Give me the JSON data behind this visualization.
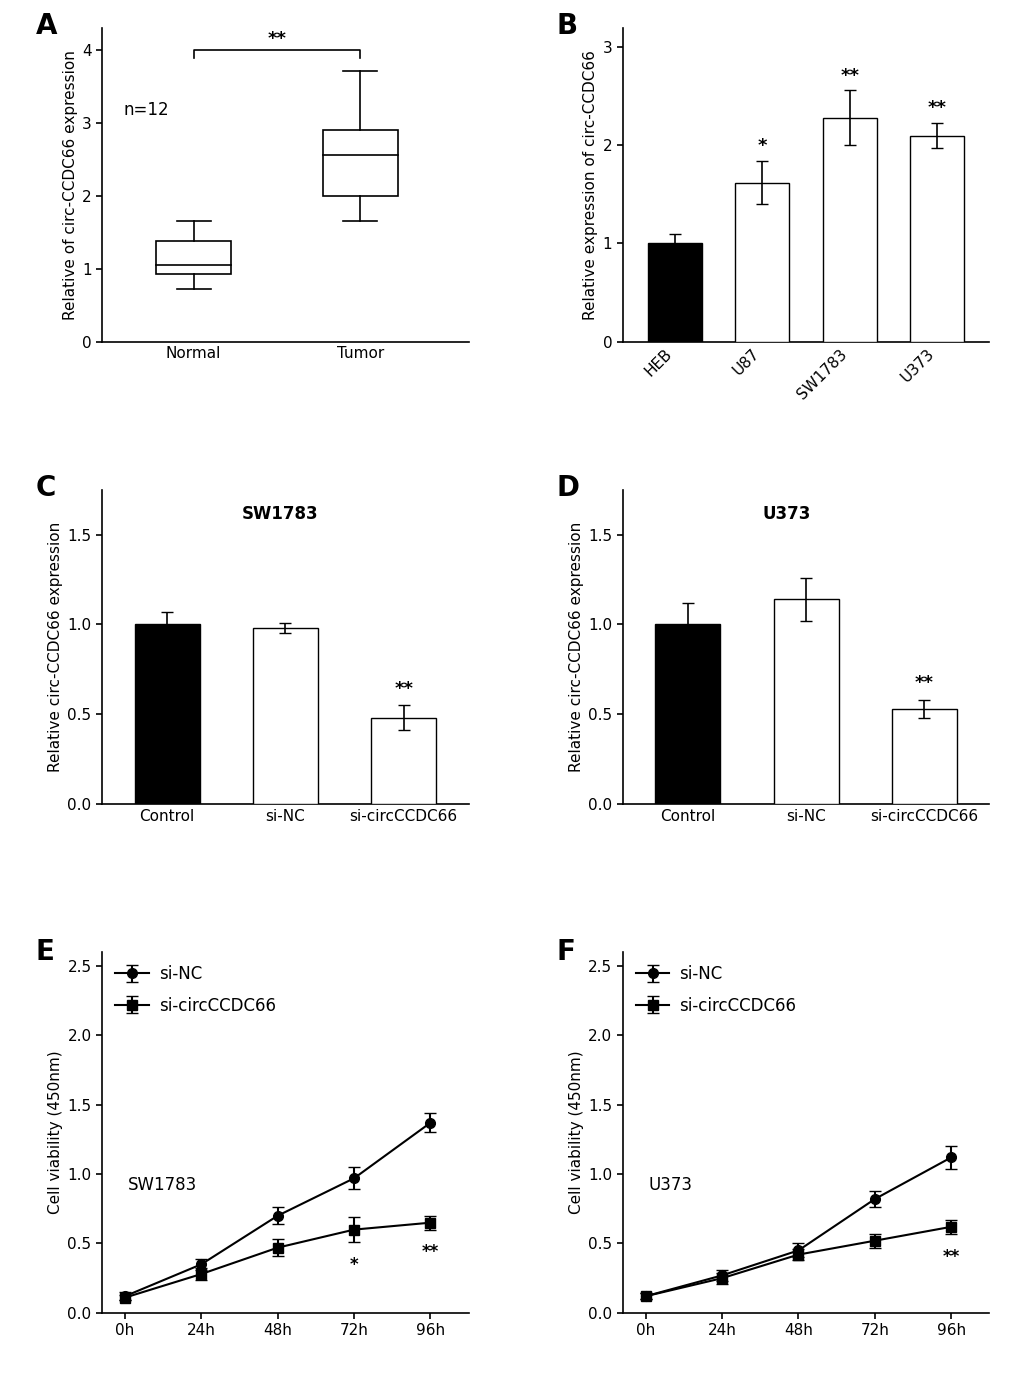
{
  "panel_A": {
    "label": "A",
    "ylabel": "Relative of circ-CCDC66 expression",
    "xlabels": [
      "Normal",
      "Tumor"
    ],
    "annotation": "n=12",
    "sig_line": "**",
    "normal_box": {
      "median": 1.05,
      "q1": 0.93,
      "q3": 1.38,
      "whisker_low": 0.72,
      "whisker_high": 1.65
    },
    "tumor_box": {
      "median": 2.55,
      "q1": 2.0,
      "q3": 2.9,
      "whisker_low": 1.65,
      "whisker_high": 3.7
    },
    "ylim": [
      0,
      4.3
    ],
    "yticks": [
      0,
      1,
      2,
      3,
      4
    ]
  },
  "panel_B": {
    "label": "B",
    "ylabel": "Relative expression of circ-CCDC66",
    "xlabels": [
      "HEB",
      "U87",
      "SW1783",
      "U373"
    ],
    "values": [
      1.0,
      1.62,
      2.28,
      2.1
    ],
    "errors": [
      0.1,
      0.22,
      0.28,
      0.13
    ],
    "colors": [
      "#000000",
      "#ffffff",
      "#ffffff",
      "#ffffff"
    ],
    "sig_labels": [
      "",
      "*",
      "**",
      "**"
    ],
    "ylim": [
      0,
      3.2
    ],
    "yticks": [
      0,
      1,
      2,
      3
    ]
  },
  "panel_C": {
    "label": "C",
    "title": "SW1783",
    "ylabel": "Relative circ-CCDC66 expression",
    "xlabels": [
      "Control",
      "si-NC",
      "si-circCCDC66"
    ],
    "values": [
      1.0,
      0.98,
      0.48
    ],
    "errors": [
      0.07,
      0.03,
      0.07
    ],
    "colors": [
      "#000000",
      "#ffffff",
      "#ffffff"
    ],
    "sig_labels": [
      "",
      "",
      "**"
    ],
    "ylim": [
      0,
      1.75
    ],
    "yticks": [
      0.0,
      0.5,
      1.0,
      1.5
    ]
  },
  "panel_D": {
    "label": "D",
    "title": "U373",
    "ylabel": "Relative circ-CCDC66 expression",
    "xlabels": [
      "Control",
      "si-NC",
      "si-circCCDC66"
    ],
    "values": [
      1.0,
      1.14,
      0.53
    ],
    "errors": [
      0.12,
      0.12,
      0.05
    ],
    "colors": [
      "#000000",
      "#ffffff",
      "#ffffff"
    ],
    "sig_labels": [
      "",
      "",
      "**"
    ],
    "ylim": [
      0,
      1.75
    ],
    "yticks": [
      0.0,
      0.5,
      1.0,
      1.5
    ]
  },
  "panel_E": {
    "label": "E",
    "title": "SW1783",
    "ylabel": "Cell viability (450nm)",
    "xlabels": [
      "0h",
      "24h",
      "48h",
      "72h",
      "96h"
    ],
    "xvalues": [
      0,
      1,
      2,
      3,
      4
    ],
    "si_NC": [
      0.12,
      0.35,
      0.7,
      0.97,
      1.37
    ],
    "si_NC_err": [
      0.03,
      0.04,
      0.06,
      0.08,
      0.07
    ],
    "si_circ": [
      0.11,
      0.28,
      0.47,
      0.6,
      0.65
    ],
    "si_circ_err": [
      0.02,
      0.04,
      0.06,
      0.09,
      0.05
    ],
    "sig_at": [
      3,
      4
    ],
    "sig_labels": [
      "*",
      "**"
    ],
    "ylim": [
      0,
      2.6
    ],
    "yticks": [
      0.0,
      0.5,
      1.0,
      1.5,
      2.0,
      2.5
    ]
  },
  "panel_F": {
    "label": "F",
    "title": "U373",
    "ylabel": "Cell viability (450nm)",
    "xlabels": [
      "0h",
      "24h",
      "48h",
      "72h",
      "96h"
    ],
    "xvalues": [
      0,
      1,
      2,
      3,
      4
    ],
    "si_NC": [
      0.12,
      0.27,
      0.45,
      0.82,
      1.12
    ],
    "si_NC_err": [
      0.02,
      0.04,
      0.05,
      0.06,
      0.08
    ],
    "si_circ": [
      0.12,
      0.25,
      0.42,
      0.52,
      0.62
    ],
    "si_circ_err": [
      0.02,
      0.04,
      0.04,
      0.05,
      0.05
    ],
    "sig_at": [
      4
    ],
    "sig_labels": [
      "**"
    ],
    "ylim": [
      0,
      2.6
    ],
    "yticks": [
      0.0,
      0.5,
      1.0,
      1.5,
      2.0,
      2.5
    ]
  },
  "bg_color": "#ffffff",
  "spine_color": "#000000",
  "label_fontsize": 20,
  "tick_fontsize": 11,
  "axis_label_fontsize": 11,
  "title_fontsize": 12,
  "sig_fontsize": 13,
  "legend_fontsize": 12
}
